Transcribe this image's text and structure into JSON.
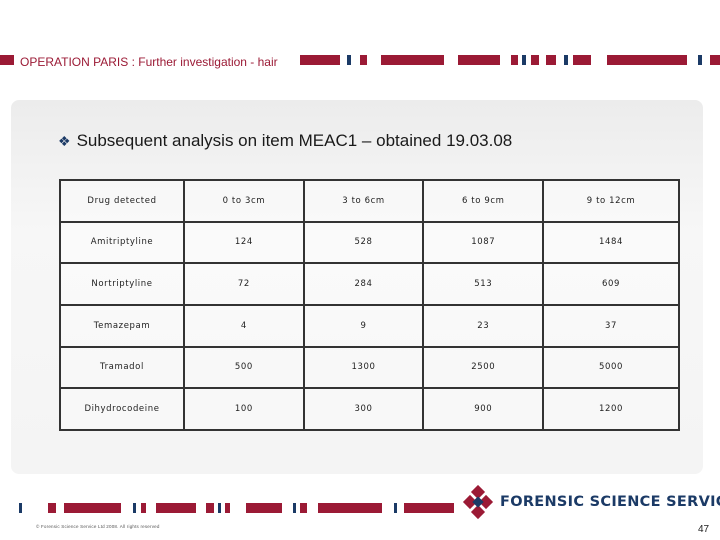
{
  "header": {
    "title": "OPERATION PARIS : Further investigation - hair"
  },
  "slide": {
    "bullet_icon": "diamond-bullet-icon",
    "subtitle": "Subsequent analysis on item MEAC1 – obtained 19.03.08"
  },
  "table": {
    "headers": [
      "Drug detected",
      "0 to 3cm",
      "3 to 6cm",
      "6 to 9cm",
      "9 to 12cm"
    ],
    "rows": [
      [
        "Amitriptyline",
        "124",
        "528",
        "1087",
        "1484"
      ],
      [
        "Nortriptyline",
        "72",
        "284",
        "513",
        "609"
      ],
      [
        "Temazepam",
        "4",
        "9",
        "23",
        "37"
      ],
      [
        "Tramadol",
        "500",
        "1300",
        "2500",
        "5000"
      ],
      [
        "Dihydrocodeine",
        "100",
        "300",
        "900",
        "1200"
      ]
    ]
  },
  "footer": {
    "logo_text": "FORENSIC SCIENCE SERVICE",
    "copyright": "© Forensic Science Service Ltd 2008. All rights reserved",
    "page_number": "47"
  },
  "colors": {
    "brand_red": "#9b1a35",
    "brand_navy": "#1b3a66"
  }
}
